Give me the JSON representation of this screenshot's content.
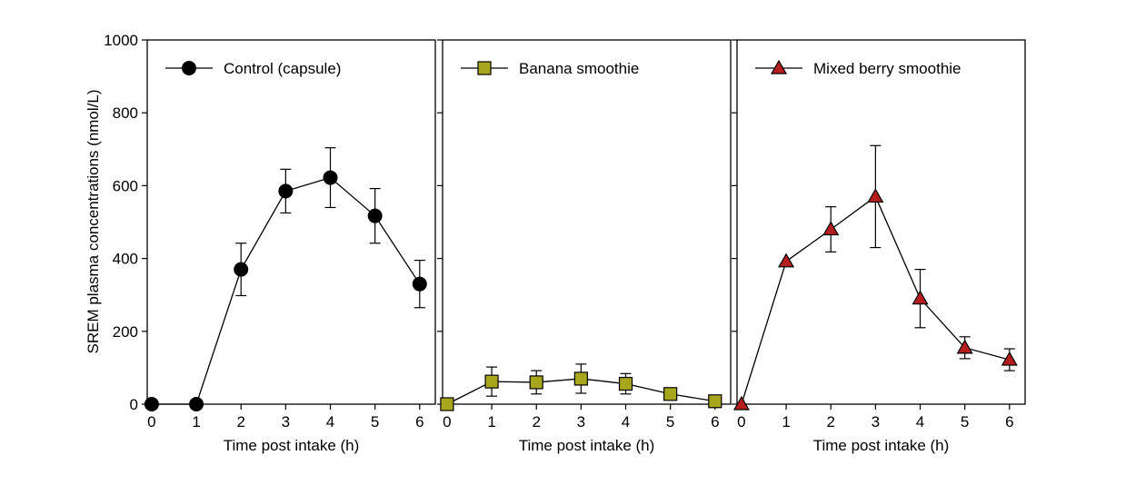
{
  "chart_data": {
    "type": "line",
    "ylabel": "SREM plasma concentrations (nmol/L)",
    "ylim": [
      0,
      1000
    ],
    "yticks": [
      0,
      200,
      400,
      600,
      800,
      1000
    ],
    "xlim": [
      -0.1,
      6.35
    ],
    "xticks": [
      0,
      1,
      2,
      3,
      4,
      5,
      6
    ],
    "legend_position": "top-left of each panel",
    "panels": [
      {
        "xlabel": "Time post intake (h)",
        "series": [
          {
            "name": "Control (capsule)",
            "marker": "circle",
            "color": "#000000",
            "x": [
              0,
              1,
              2,
              3,
              4,
              5,
              6
            ],
            "y": [
              0,
              0,
              370,
              585,
              622,
              517,
              330
            ],
            "err": [
              0,
              0,
              72,
              60,
              82,
              75,
              65
            ]
          }
        ]
      },
      {
        "xlabel": "Time post intake (h)",
        "series": [
          {
            "name": "Banana smoothie",
            "marker": "square",
            "color": "#a8a61c",
            "x": [
              0,
              1,
              2,
              3,
              4,
              5,
              6
            ],
            "y": [
              0,
              62,
              60,
              70,
              56,
              28,
              8
            ],
            "err": [
              0,
              40,
              32,
              40,
              28,
              0,
              0
            ]
          }
        ]
      },
      {
        "xlabel": "Time post intake (h)",
        "series": [
          {
            "name": "Mixed berry smoothie",
            "marker": "triangle",
            "color": "#b51e1e",
            "x": [
              0,
              1,
              2,
              3,
              4,
              5,
              6
            ],
            "y": [
              0,
              392,
              480,
              570,
              290,
              155,
              122
            ],
            "err": [
              0,
              0,
              62,
              140,
              80,
              30,
              30
            ]
          }
        ]
      }
    ]
  }
}
